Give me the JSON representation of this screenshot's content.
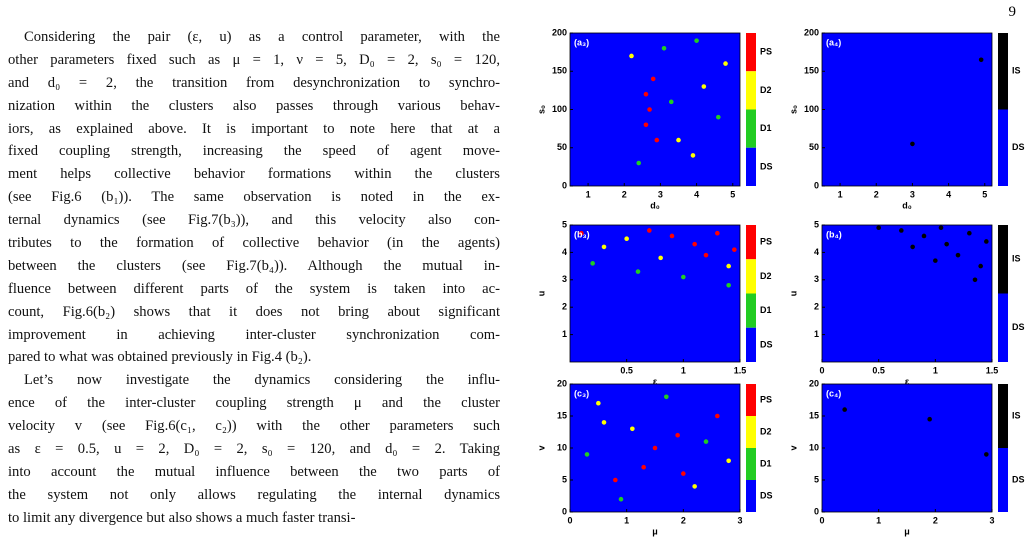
{
  "page_number": "9",
  "paragraphs": [
    {
      "lines": [
        "Considering the pair (ε, u) as a control parameter, with the",
        "other parameters fixed such as μ = 1, ν = 5, D₀ = 2, s₀ = 120,",
        "and d₀ = 2, the transition from desynchronization to synchro-",
        "nization within the clusters also passes through various behav-",
        "iors, as explained above. It is important to note here that at a",
        "fixed coupling strength, increasing the speed of agent move-",
        "ment helps collective behavior formations within the clusters",
        "(see Fig.6 (b₁)).  The same observation is noted in the ex-",
        "ternal dynamics (see Fig.7(b₃)), and this velocity also con-",
        "tributes to the formation of collective behavior (in the agents)",
        "between the clusters (see Fig.7(b₄)). Although the mutual in-",
        "fluence between different parts of the system is taken into ac-",
        "count, Fig.6(b₂) shows that it does not bring about significant",
        "improvement in achieving inter-cluster synchronization com-",
        "pared to what was obtained previously in Fig.4 (b₂)."
      ]
    },
    {
      "lines": [
        "Let’s now investigate the dynamics considering the influ-",
        "ence of the inter-cluster coupling strength μ and the cluster",
        "velocity v (see Fig.6(c₁, c₂)) with the other parameters such",
        "as ε = 0.5, u = 2, D₀ = 2, s₀ = 120, and d₀ = 2.  Taking",
        "into account the mutual influence between the two parts of",
        "the system not only allows regulating the internal dynamics",
        "to limit any divergence but also shows a much faster transi-"
      ]
    }
  ],
  "figure": {
    "panels": [
      {
        "tag": "(a₃)",
        "xlabel": "d₀",
        "ylabel": "s₀",
        "xlim": [
          0.5,
          5.2
        ],
        "ylim": [
          0,
          200
        ],
        "xticks": [
          1,
          2,
          3,
          4,
          5
        ],
        "yticks": [
          0,
          50,
          100,
          150,
          200
        ],
        "legend": [
          {
            "label": "PS",
            "color": "#ff0000"
          },
          {
            "label": "D2",
            "color": "#ffff00"
          },
          {
            "label": "D1",
            "color": "#22cc22"
          },
          {
            "label": "DS",
            "color": "#0000ff"
          }
        ],
        "points": [
          [
            2.6,
            80,
            0
          ],
          [
            2.7,
            100,
            0
          ],
          [
            2.6,
            120,
            0
          ],
          [
            2.8,
            140,
            0
          ],
          [
            3.5,
            60,
            1
          ],
          [
            4.2,
            130,
            1
          ],
          [
            2.2,
            170,
            1
          ],
          [
            3.9,
            40,
            1
          ],
          [
            3.1,
            180,
            2
          ],
          [
            4.6,
            90,
            2
          ],
          [
            2.4,
            30,
            2
          ],
          [
            3.3,
            110,
            2
          ],
          [
            4.8,
            160,
            1
          ],
          [
            2.9,
            60,
            0
          ],
          [
            4.0,
            190,
            2
          ]
        ]
      },
      {
        "tag": "(a₄)",
        "xlabel": "d₀",
        "ylabel": "s₀",
        "xlim": [
          0.5,
          5.2
        ],
        "ylim": [
          0,
          200
        ],
        "xticks": [
          1,
          2,
          3,
          4,
          5
        ],
        "yticks": [
          0,
          50,
          100,
          150,
          200
        ],
        "legend": [
          {
            "label": "IS",
            "color": "#000000"
          },
          {
            "label": "DS",
            "color": "#0000ff"
          }
        ],
        "points": [
          [
            4.9,
            165,
            0
          ],
          [
            3.0,
            55,
            0
          ]
        ]
      },
      {
        "tag": "(b₃)",
        "xlabel": "ε",
        "ylabel": "u",
        "xlim": [
          0,
          1.5
        ],
        "ylim": [
          0,
          5
        ],
        "xticks": [
          0.5,
          1,
          1.5
        ],
        "yticks": [
          1,
          2,
          3,
          4,
          5
        ],
        "legend": [
          {
            "label": "PS",
            "color": "#ff0000"
          },
          {
            "label": "D2",
            "color": "#ffff00"
          },
          {
            "label": "D1",
            "color": "#22cc22"
          },
          {
            "label": "DS",
            "color": "#0000ff"
          }
        ],
        "points": [
          [
            0.9,
            4.6,
            0
          ],
          [
            1.1,
            4.3,
            0
          ],
          [
            1.3,
            4.7,
            0
          ],
          [
            0.7,
            4.8,
            0
          ],
          [
            1.2,
            3.9,
            0
          ],
          [
            0.5,
            4.5,
            1
          ],
          [
            1.4,
            3.5,
            1
          ],
          [
            0.8,
            3.8,
            1
          ],
          [
            0.3,
            4.2,
            1
          ],
          [
            0.1,
            4.7,
            0
          ],
          [
            1.0,
            3.1,
            2
          ],
          [
            0.6,
            3.3,
            2
          ],
          [
            1.4,
            2.8,
            2
          ],
          [
            0.2,
            3.6,
            2
          ],
          [
            1.45,
            4.1,
            0
          ]
        ]
      },
      {
        "tag": "(b₄)",
        "xlabel": "ε",
        "ylabel": "u",
        "xlim": [
          0,
          1.5
        ],
        "ylim": [
          0,
          5
        ],
        "xticks": [
          0,
          0.5,
          1,
          1.5
        ],
        "yticks": [
          1,
          2,
          3,
          4,
          5
        ],
        "legend": [
          {
            "label": "IS",
            "color": "#000000"
          },
          {
            "label": "DS",
            "color": "#0000ff"
          }
        ],
        "points": [
          [
            0.9,
            4.6,
            0
          ],
          [
            1.1,
            4.3,
            0
          ],
          [
            1.3,
            4.7,
            0
          ],
          [
            0.7,
            4.8,
            0
          ],
          [
            1.2,
            3.9,
            0
          ],
          [
            0.5,
            4.9,
            0
          ],
          [
            1.4,
            3.5,
            0
          ],
          [
            1.0,
            3.7,
            0
          ],
          [
            0.8,
            4.2,
            0
          ],
          [
            1.35,
            3.0,
            0
          ],
          [
            1.05,
            4.9,
            0
          ],
          [
            1.45,
            4.4,
            0
          ]
        ]
      },
      {
        "tag": "(c₃)",
        "xlabel": "μ",
        "ylabel": "v",
        "xlim": [
          0,
          3
        ],
        "ylim": [
          0,
          20
        ],
        "xticks": [
          0,
          1,
          2,
          3
        ],
        "yticks": [
          0,
          5,
          10,
          15,
          20
        ],
        "legend": [
          {
            "label": "PS",
            "color": "#ff0000"
          },
          {
            "label": "D2",
            "color": "#ffff00"
          },
          {
            "label": "D1",
            "color": "#22cc22"
          },
          {
            "label": "DS",
            "color": "#0000ff"
          }
        ],
        "points": [
          [
            1.5,
            10,
            0
          ],
          [
            1.3,
            7,
            0
          ],
          [
            1.9,
            12,
            0
          ],
          [
            0.8,
            5,
            0
          ],
          [
            2.6,
            15,
            0
          ],
          [
            0.5,
            17,
            1
          ],
          [
            2.2,
            4,
            1
          ],
          [
            1.1,
            13,
            1
          ],
          [
            2.8,
            8,
            1
          ],
          [
            0.3,
            9,
            2
          ],
          [
            1.7,
            18,
            2
          ],
          [
            2.4,
            11,
            2
          ],
          [
            0.9,
            2,
            2
          ],
          [
            2.0,
            6,
            0
          ],
          [
            0.6,
            14,
            1
          ]
        ]
      },
      {
        "tag": "(c₄)",
        "xlabel": "μ",
        "ylabel": "v",
        "xlim": [
          0,
          3
        ],
        "ylim": [
          0,
          20
        ],
        "xticks": [
          0,
          1,
          2,
          3
        ],
        "yticks": [
          0,
          5,
          10,
          15,
          20
        ],
        "legend": [
          {
            "label": "IS",
            "color": "#000000"
          },
          {
            "label": "DS",
            "color": "#0000ff"
          }
        ],
        "points": [
          [
            0.4,
            16,
            0
          ],
          [
            1.9,
            14.5,
            0
          ],
          [
            2.9,
            9,
            0
          ]
        ]
      }
    ]
  }
}
